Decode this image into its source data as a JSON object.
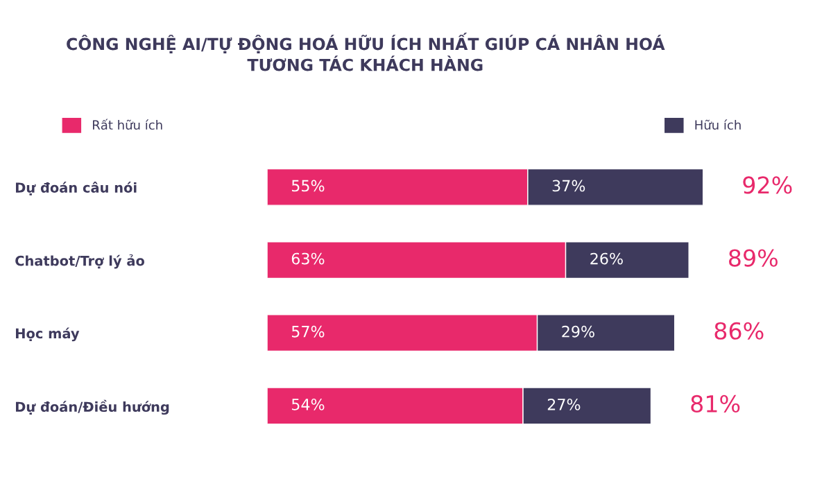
{
  "chart_data": {
    "type": "bar",
    "orientation": "horizontal",
    "stacked": true,
    "title": "CÔNG NGHỆ AI/TỰ ĐỘNG HOÁ HỮU ÍCH NHẤT GIÚP CÁ NHÂN HOÁ\nTƯƠNG TÁC KHÁCH HÀNG",
    "categories": [
      "Dự đoán câu nói",
      "Chatbot/Trợ lý ảo",
      "Học máy",
      "Dự đoán/Điều hướng"
    ],
    "series": [
      {
        "name": "Rất hữu ích",
        "color": "#e8296b",
        "values": [
          55,
          63,
          57,
          54
        ],
        "value_labels": [
          "55%",
          "63%",
          "57%",
          "54%"
        ]
      },
      {
        "name": "Hữu ích",
        "color": "#3e3a5c",
        "values": [
          37,
          26,
          29,
          27
        ],
        "value_labels": [
          "37%",
          "26%",
          "29%",
          "27%"
        ]
      }
    ],
    "totals": [
      "92%",
      "89%",
      "86%",
      "81%"
    ],
    "legend": "top",
    "tick_labels": "y",
    "grid": false
  }
}
